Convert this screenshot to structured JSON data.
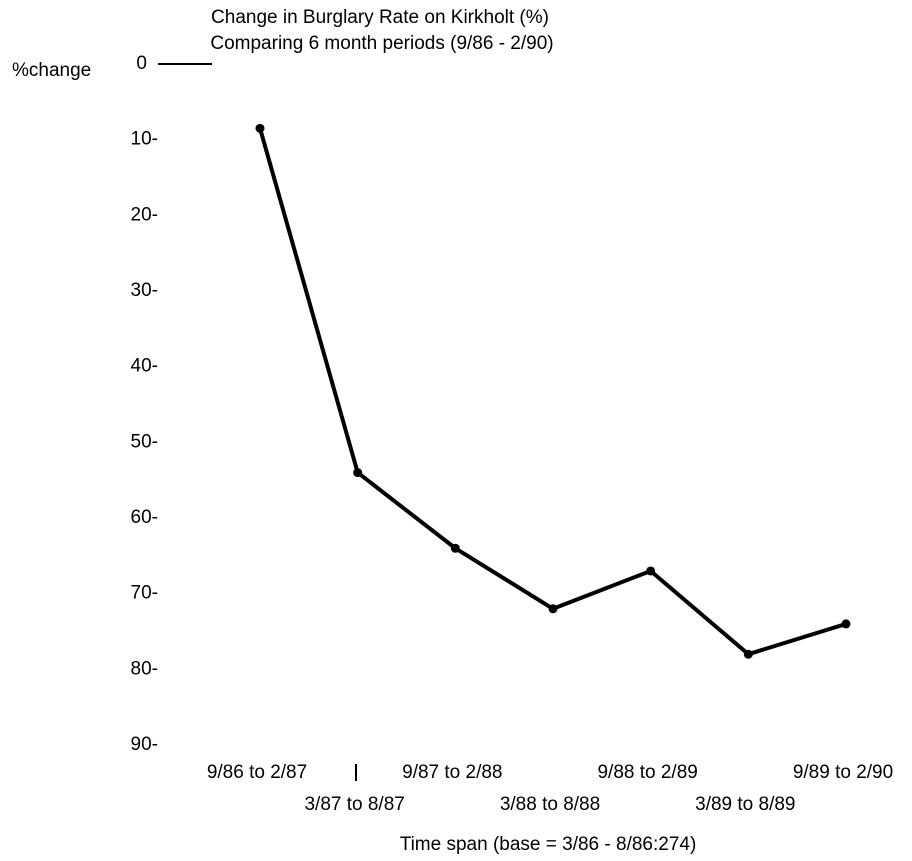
{
  "chart_data": {
    "type": "line",
    "title": "Change in Burglary Rate on Kirkholt (%)",
    "subtitle": "Comparing 6 month periods (9/86 - 2/90)",
    "y_label": "%change",
    "x_label": "Time span (base = 3/86 - 8/86:274)",
    "categories": [
      "9/86 to 2/87",
      "3/87 to 8/87",
      "9/87 to 2/88",
      "3/88 to 8/88",
      "9/88 to 2/89",
      "3/89 to 8/89",
      "9/89 to 2/90"
    ],
    "values": [
      8.5,
      54,
      64,
      72,
      67,
      78,
      74
    ],
    "color": "#000000",
    "ylim": [
      0,
      90
    ],
    "invert_y": true,
    "yticks": [
      0,
      {
        "value": 10,
        "label": "10-"
      },
      {
        "value": 20,
        "label": "20-"
      },
      {
        "value": 30,
        "label": "30-"
      },
      {
        "value": 40,
        "label": "40-"
      },
      {
        "value": 50,
        "label": "50-"
      },
      {
        "value": 60,
        "label": "60-"
      },
      {
        "value": 70,
        "label": "70-"
      },
      {
        "value": 80,
        "label": "80-"
      },
      {
        "value": 90,
        "label": "90-"
      }
    ]
  }
}
